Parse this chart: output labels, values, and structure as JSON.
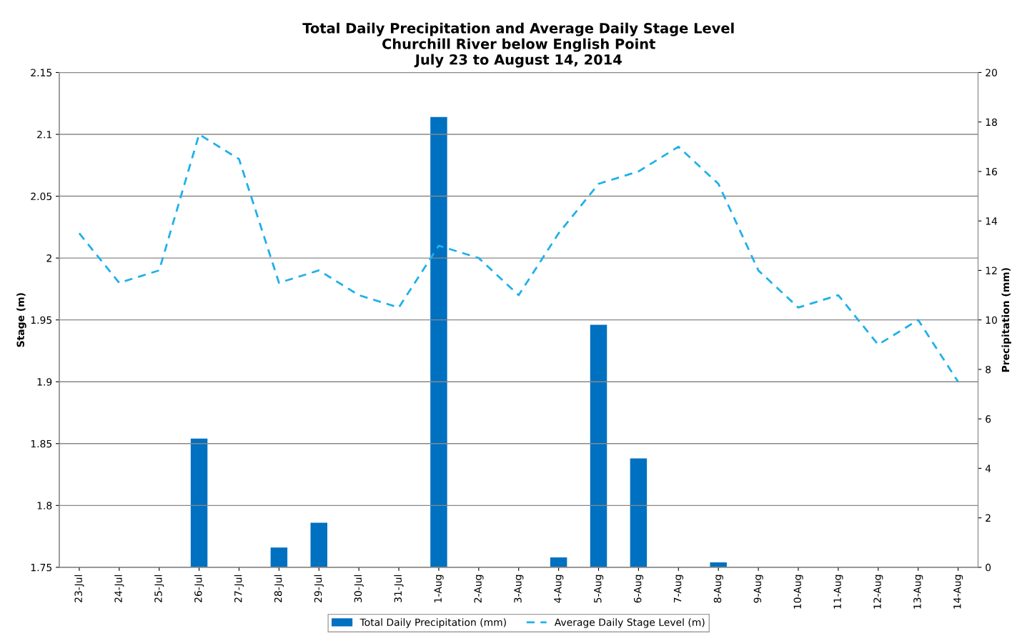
{
  "chart_data": {
    "type": "bar",
    "title": "Total Daily Precipitation and Average Daily Stage Level\nChurchill River below English Point\nJuly 23 to August 14, 2014",
    "categories": [
      "23-Jul",
      "24-Jul",
      "25-Jul",
      "26-Jul",
      "27-Jul",
      "28-Jul",
      "29-Jul",
      "30-Jul",
      "31-Jul",
      "1-Aug",
      "2-Aug",
      "3-Aug",
      "4-Aug",
      "5-Aug",
      "6-Aug",
      "7-Aug",
      "8-Aug",
      "9-Aug",
      "10-Aug",
      "11-Aug",
      "12-Aug",
      "13-Aug",
      "14-Aug"
    ],
    "series": [
      {
        "name": "Total Daily Precipitation (mm)",
        "axis": "y2",
        "color": "#0070c0",
        "values": [
          0,
          0,
          0,
          5.2,
          0,
          0.8,
          1.8,
          0,
          0,
          18.2,
          0,
          0,
          0.4,
          9.8,
          4.4,
          0,
          0.2,
          0,
          0,
          0,
          0,
          0,
          0
        ]
      },
      {
        "name": "Average Daily Stage Level (m)",
        "type": "line",
        "axis": "y",
        "color": "#1fb0ea",
        "line_style": "dashed",
        "values": [
          2.02,
          1.98,
          1.99,
          2.1,
          2.08,
          1.98,
          1.99,
          1.97,
          1.96,
          2.01,
          2.0,
          1.97,
          2.02,
          2.06,
          2.07,
          2.09,
          2.06,
          1.99,
          1.96,
          1.97,
          1.93,
          1.95,
          1.9
        ]
      }
    ],
    "ylabel": "Stage (m)",
    "y2label": "Precipitation (mm)",
    "ylim": [
      1.75,
      2.15
    ],
    "yticks": [
      1.75,
      1.8,
      1.85,
      1.9,
      1.95,
      2,
      2.05,
      2.1,
      2.15
    ],
    "y2lim": [
      0,
      20
    ],
    "y2ticks": [
      0,
      2,
      4,
      6,
      8,
      10,
      12,
      14,
      16,
      18,
      20
    ],
    "grid": "y",
    "legend": "bottom"
  }
}
